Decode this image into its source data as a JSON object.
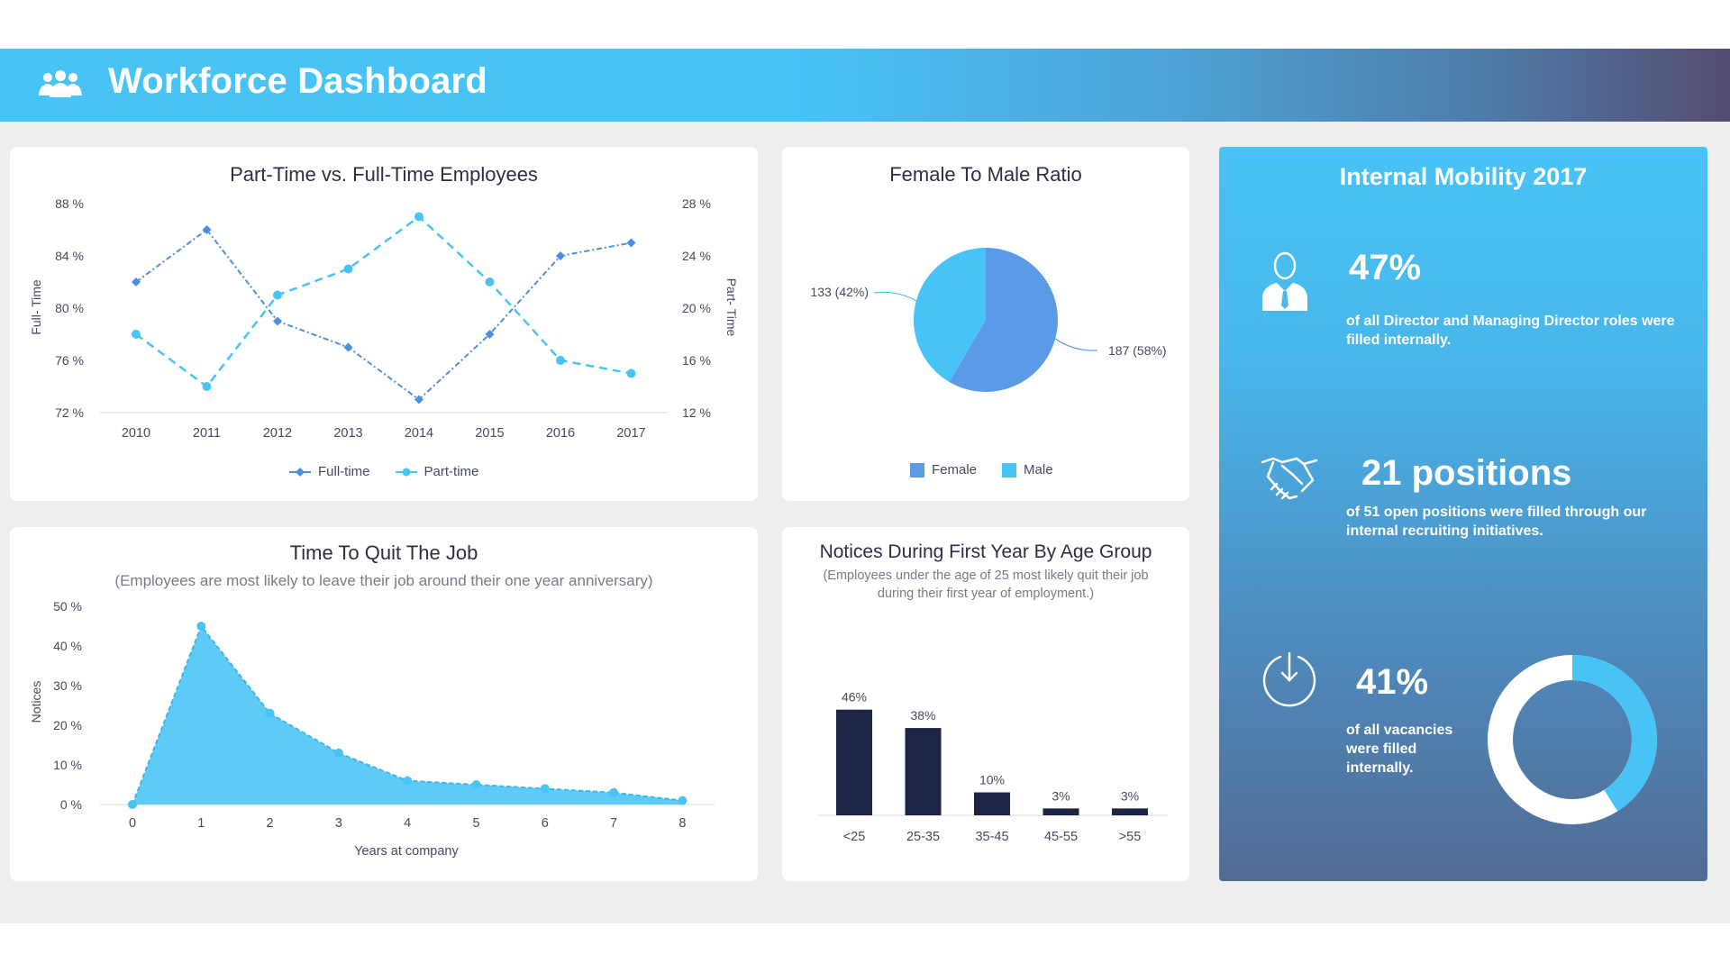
{
  "header": {
    "title": "Workforce Dashboard",
    "icon": "users-icon",
    "color": "#48c3f6"
  },
  "cards": {
    "part_full": {
      "title": "Part-Time vs. Full-Time Employees",
      "y_left_label": "Full- Time",
      "y_right_label": "Part- Time",
      "legend": [
        "Full-time",
        "Part-time"
      ]
    },
    "ratio": {
      "title": "Female To Male Ratio",
      "legend": [
        "Female",
        "Male"
      ]
    },
    "quit": {
      "title": "Time To Quit The Job",
      "subtitle": "(Employees are most likely to leave their job around their one year anniversary)",
      "xlabel": "Years at company",
      "ylabel": "Notices"
    },
    "notices": {
      "title": "Notices During First Year By Age Group",
      "subtitle_line1": "(Employees under the age of 25 most likely quit their job",
      "subtitle_line2": "during their first year of employment.)"
    }
  },
  "mobility": {
    "title": "Internal Mobility 2017",
    "stats": [
      {
        "icon": "businessman-icon",
        "value": "47%",
        "text_line1": "of all Director and Managing Director roles were",
        "text_line2": "filled internally."
      },
      {
        "icon": "handshake-icon",
        "value": "21 positions",
        "text_line1": "of 51 open positions were filled through our",
        "text_line2": "internal recruiting initiatives."
      },
      {
        "icon": "down-arrow-circle-icon",
        "value": "41%",
        "text_line1": "of all vacancies",
        "text_line2": "were filled",
        "text_line3": "internally."
      }
    ],
    "donut_value": 0.41
  },
  "chart_data": [
    {
      "id": "part_full",
      "type": "line",
      "title": "Part-Time vs. Full-Time Employees",
      "x": [
        "2010",
        "2011",
        "2012",
        "2013",
        "2014",
        "2015",
        "2016",
        "2017"
      ],
      "series": [
        {
          "name": "Full-time",
          "axis": "left",
          "values": [
            82,
            86,
            79,
            77,
            73,
            78,
            84,
            85
          ],
          "color": "#4b8fde"
        },
        {
          "name": "Part-time",
          "axis": "right",
          "values": [
            18,
            14,
            21,
            23,
            27,
            22,
            16,
            15
          ],
          "color": "#48c3f6"
        }
      ],
      "ylim_left": [
        72,
        88
      ],
      "yticks_left": [
        "88 %",
        "84 %",
        "80 %",
        "76 %",
        "72 %"
      ],
      "ylim_right": [
        12,
        28
      ],
      "yticks_right": [
        "28 %",
        "24 %",
        "20 %",
        "16 %",
        "12 %"
      ],
      "legend_position": "bottom"
    },
    {
      "id": "ratio",
      "type": "pie",
      "title": "Female To Male Ratio",
      "slices": [
        {
          "name": "Female",
          "value": 187,
          "label": "187 (58%)",
          "color": "#5a9ae6"
        },
        {
          "name": "Male",
          "value": 133,
          "label": "133 (42%)",
          "color": "#48c3f6"
        }
      ],
      "legend_position": "bottom"
    },
    {
      "id": "quit",
      "type": "area",
      "title": "Time To Quit The Job",
      "x": [
        0,
        1,
        2,
        3,
        4,
        5,
        6,
        7,
        8
      ],
      "values": [
        0,
        45,
        23,
        13,
        6,
        5,
        4,
        3,
        1
      ],
      "ylim": [
        0,
        50
      ],
      "yticks": [
        "50 %",
        "40 %",
        "30 %",
        "20 %",
        "10 %",
        "0 %"
      ],
      "xlabel": "Years at company",
      "ylabel": "Notices",
      "color": "#48c3f6"
    },
    {
      "id": "notices",
      "type": "bar",
      "title": "Notices During First Year By Age Group",
      "categories": [
        "<25",
        "25-35",
        "35-45",
        "45-55",
        ">55"
      ],
      "values": [
        46,
        38,
        10,
        3,
        3
      ],
      "labels": [
        "46%",
        "38%",
        "10%",
        "3%",
        "3%"
      ],
      "color": "#1c2545"
    }
  ]
}
